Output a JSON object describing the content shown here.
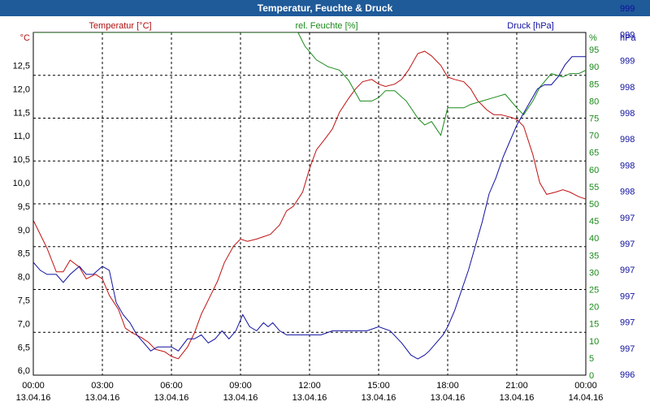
{
  "window": {
    "title": "Temperatur, Feuchte & Druck"
  },
  "chart_data": {
    "type": "line",
    "title": "Temperatur, Feuchte & Druck",
    "x_ticks": [
      {
        "time": "00:00",
        "date": "13.04.16"
      },
      {
        "time": "03:00",
        "date": "13.04.16"
      },
      {
        "time": "06:00",
        "date": "13.04.16"
      },
      {
        "time": "09:00",
        "date": "13.04.16"
      },
      {
        "time": "12:00",
        "date": "13.04.16"
      },
      {
        "time": "15:00",
        "date": "13.04.16"
      },
      {
        "time": "18:00",
        "date": "13.04.16"
      },
      {
        "time": "21:00",
        "date": "13.04.16"
      },
      {
        "time": "00:00",
        "date": "14.04.16"
      }
    ],
    "xlim_hours": [
      0,
      24
    ],
    "grid": true,
    "axes": {
      "temperature": {
        "label": "Temperatur [°C]",
        "unit": "°C",
        "color": "#b01010",
        "ylim": [
          5.9,
          13.2
        ],
        "ticks": [
          "6,0",
          "6,5",
          "7,0",
          "7,5",
          "8,0",
          "8,5",
          "9,0",
          "9,5",
          "10,0",
          "10,5",
          "11,0",
          "11,5",
          "12,0",
          "12,5"
        ]
      },
      "humidity": {
        "label": "rel. Feuchte [%]",
        "unit": "%",
        "color": "#1a8a1a",
        "ylim": [
          0,
          100
        ],
        "ticks": [
          "0",
          "5",
          "10",
          "15",
          "20",
          "25",
          "30",
          "35",
          "40",
          "45",
          "50",
          "55",
          "60",
          "65",
          "70",
          "75",
          "80",
          "85",
          "90",
          "95"
        ]
      },
      "pressure": {
        "label": "Druck [hPa]",
        "unit": "hPa",
        "color": "#1010a0",
        "ticks": [
          "996",
          "997",
          "997",
          "997",
          "997",
          "997",
          "997",
          "998",
          "998",
          "998",
          "998",
          "998",
          "999",
          "999",
          "999"
        ]
      }
    },
    "series": [
      {
        "name": "Temperatur [°C]",
        "axis": "temperature",
        "color": "#c01010",
        "x": [
          0,
          0.3,
          0.6,
          1.0,
          1.3,
          1.6,
          2.0,
          2.3,
          2.7,
          3.0,
          3.3,
          3.7,
          4.0,
          4.3,
          4.7,
          5.0,
          5.3,
          5.7,
          6.0,
          6.3,
          6.7,
          7.0,
          7.3,
          7.7,
          8.0,
          8.3,
          8.7,
          9.0,
          9.3,
          9.7,
          10.0,
          10.3,
          10.7,
          11.0,
          11.3,
          11.7,
          12.0,
          12.3,
          12.7,
          13.0,
          13.3,
          13.7,
          14.0,
          14.3,
          14.7,
          15.0,
          15.3,
          15.7,
          16.0,
          16.3,
          16.7,
          17.0,
          17.3,
          17.7,
          18.0,
          18.3,
          18.7,
          19.0,
          19.3,
          19.7,
          20.0,
          20.3,
          20.7,
          21.0,
          21.3,
          21.7,
          22.0,
          22.3,
          22.7,
          23.0,
          23.3,
          23.7,
          24.0
        ],
        "y": [
          9.2,
          8.9,
          8.6,
          8.1,
          8.1,
          8.35,
          8.2,
          7.95,
          8.05,
          7.95,
          7.6,
          7.3,
          6.9,
          6.8,
          6.7,
          6.6,
          6.45,
          6.4,
          6.3,
          6.25,
          6.5,
          6.8,
          7.2,
          7.6,
          7.9,
          8.3,
          8.65,
          8.8,
          8.75,
          8.8,
          8.85,
          8.9,
          9.1,
          9.4,
          9.5,
          9.8,
          10.3,
          10.7,
          10.95,
          11.15,
          11.5,
          11.8,
          12.0,
          12.15,
          12.2,
          12.1,
          12.05,
          12.1,
          12.2,
          12.4,
          12.75,
          12.8,
          12.7,
          12.5,
          12.25,
          12.2,
          12.15,
          12.0,
          11.75,
          11.55,
          11.45,
          11.45,
          11.4,
          11.35,
          11.2,
          10.6,
          10.0,
          9.75,
          9.8,
          9.85,
          9.8,
          9.7,
          9.65
        ]
      },
      {
        "name": "rel. Feuchte [%]",
        "axis": "humidity",
        "color": "#1a8a1a",
        "x": [
          0,
          11.5,
          11.8,
          12.3,
          12.8,
          13.3,
          13.7,
          14.2,
          14.7,
          15.0,
          15.3,
          15.7,
          16.2,
          16.7,
          17.0,
          17.3,
          17.7,
          18.0,
          18.3,
          18.7,
          19.0,
          19.5,
          20.0,
          20.5,
          21.0,
          21.3,
          21.7,
          22.0,
          22.5,
          23.0,
          23.3,
          23.7,
          24.0
        ],
        "y": [
          100,
          100,
          96,
          92,
          90,
          89,
          86,
          80,
          80,
          81,
          83,
          83,
          80,
          75,
          73,
          74,
          70,
          78,
          78,
          78,
          79,
          80,
          81,
          82,
          78,
          76,
          80,
          84,
          88,
          87,
          88,
          88,
          89
        ]
      },
      {
        "name": "Druck [hPa]",
        "axis": "pressure",
        "color": "#1010a0",
        "x": [
          0,
          0.3,
          0.6,
          1.0,
          1.3,
          1.6,
          2.0,
          2.3,
          2.6,
          3.0,
          3.3,
          3.6,
          3.9,
          4.2,
          4.5,
          4.8,
          5.1,
          5.4,
          5.7,
          6.0,
          6.3,
          6.7,
          7.0,
          7.3,
          7.6,
          7.9,
          8.2,
          8.5,
          8.8,
          9.1,
          9.4,
          9.7,
          10.0,
          10.2,
          10.4,
          10.7,
          11.0,
          11.3,
          11.6,
          12.0,
          12.5,
          13.0,
          13.5,
          14.0,
          14.5,
          15.0,
          15.5,
          16.0,
          16.4,
          16.7,
          17.0,
          17.2,
          17.5,
          17.8,
          18.0,
          18.3,
          18.6,
          18.9,
          19.2,
          19.5,
          19.8,
          20.1,
          20.4,
          20.7,
          21.0,
          21.3,
          21.6,
          21.9,
          22.2,
          22.5,
          22.8,
          23.1,
          23.4,
          23.7,
          24.0
        ],
        "y": [
          996.48,
          996.46,
          996.45,
          996.45,
          996.43,
          996.45,
          996.47,
          996.45,
          996.45,
          996.47,
          996.46,
          996.38,
          996.35,
          996.33,
          996.3,
          996.28,
          996.26,
          996.27,
          996.27,
          996.27,
          996.26,
          996.29,
          996.29,
          996.3,
          996.28,
          996.29,
          996.31,
          996.29,
          996.31,
          996.35,
          996.32,
          996.31,
          996.33,
          996.32,
          996.33,
          996.31,
          996.3,
          996.3,
          996.3,
          996.3,
          996.3,
          996.31,
          996.31,
          996.31,
          996.31,
          996.32,
          996.31,
          996.28,
          996.25,
          996.24,
          996.25,
          996.26,
          996.28,
          996.3,
          996.32,
          996.36,
          996.41,
          996.46,
          996.52,
          996.58,
          996.65,
          996.69,
          996.74,
          996.78,
          996.82,
          996.85,
          996.88,
          996.91,
          996.92,
          996.92,
          996.94,
          996.97,
          996.99,
          996.99,
          996.99
        ]
      }
    ]
  }
}
